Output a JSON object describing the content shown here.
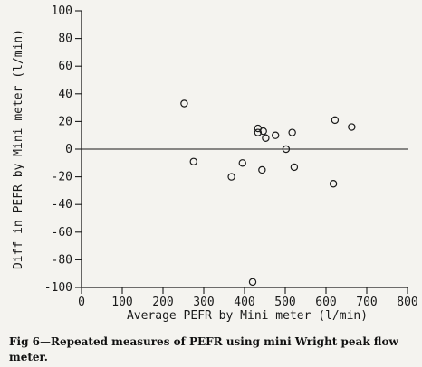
{
  "chart_data": {
    "type": "scatter",
    "title": "",
    "xlabel": "Average PEFR by Mini meter (l/min)",
    "ylabel": "Diff in PEFR by Mini meter (l/min)",
    "xlim": [
      0,
      800
    ],
    "ylim": [
      -100,
      100
    ],
    "x_ticks": [
      0,
      100,
      200,
      300,
      400,
      500,
      600,
      700,
      800
    ],
    "y_ticks": [
      -100,
      -80,
      -60,
      -40,
      -20,
      0,
      20,
      40,
      60,
      80,
      100
    ],
    "grid": false,
    "reference_line_y": 0,
    "marker": "open-circle",
    "series": [
      {
        "points": [
          {
            "x": 252,
            "y": 33
          },
          {
            "x": 275,
            "y": -9
          },
          {
            "x": 368,
            "y": -20
          },
          {
            "x": 395,
            "y": -10
          },
          {
            "x": 420,
            "y": -96
          },
          {
            "x": 433,
            "y": 15
          },
          {
            "x": 433,
            "y": 12
          },
          {
            "x": 443,
            "y": -15
          },
          {
            "x": 446,
            "y": 13
          },
          {
            "x": 452,
            "y": 8
          },
          {
            "x": 476,
            "y": 10
          },
          {
            "x": 502,
            "y": 0
          },
          {
            "x": 517,
            "y": 12
          },
          {
            "x": 522,
            "y": -13
          },
          {
            "x": 618,
            "y": -25
          },
          {
            "x": 622,
            "y": 21
          },
          {
            "x": 663,
            "y": 16
          }
        ]
      }
    ]
  },
  "caption": "Fig 6—Repeated measures of PEFR using mini Wright peak flow meter."
}
